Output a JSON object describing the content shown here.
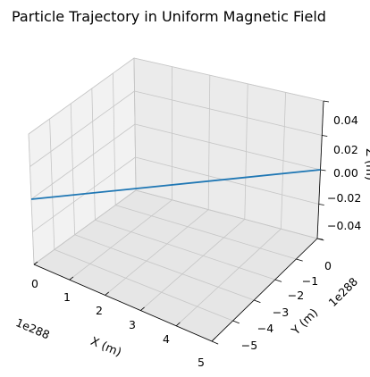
{
  "chart_data": {
    "type": "line",
    "title": "Particle Trajectory in Uniform Magnetic Field",
    "xlabel": "X (m)",
    "ylabel": "Y (m)",
    "zlabel": "Z (m)",
    "x_offset_text": "1e288",
    "y_offset_text": "1e288",
    "x_ticks": [
      "0",
      "1",
      "2",
      "3",
      "4",
      "5"
    ],
    "y_ticks": [
      "0",
      "−1",
      "−2",
      "−3",
      "−4",
      "−5"
    ],
    "z_ticks": [
      "0.04",
      "0.02",
      "0.00",
      "−0.02",
      "−0.04"
    ],
    "xlim": [
      0,
      5
    ],
    "ylim": [
      -5,
      0
    ],
    "zlim": [
      -0.04,
      0.04
    ],
    "grid": true,
    "series": [
      {
        "color": "#1f77b4",
        "points": [
          {
            "x": 0,
            "y": 0,
            "z": 0
          },
          {
            "x": 5,
            "y": -5,
            "z": 0
          }
        ]
      }
    ]
  }
}
